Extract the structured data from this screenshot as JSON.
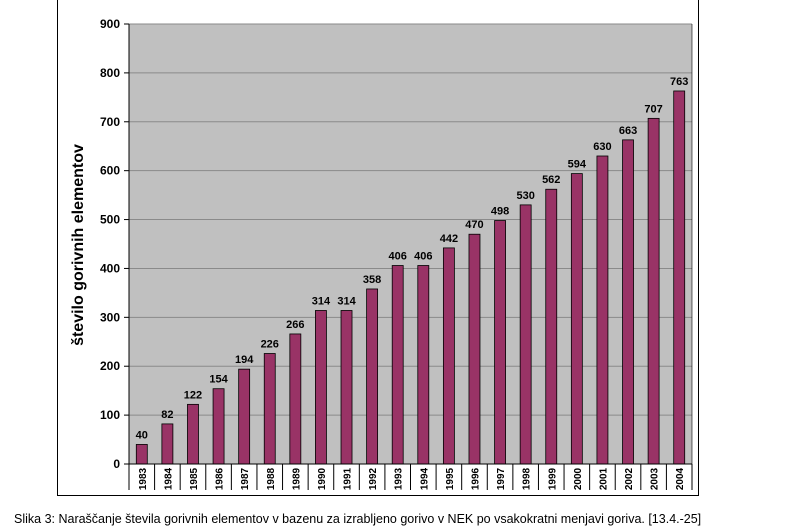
{
  "chart_data": {
    "type": "bar",
    "categories": [
      "1983",
      "1984",
      "1985",
      "1986",
      "1987",
      "1988",
      "1989",
      "1990",
      "1991",
      "1992",
      "1993",
      "1994",
      "1995",
      "1996",
      "1997",
      "1998",
      "1999",
      "2000",
      "2001",
      "2002",
      "2003",
      "2004"
    ],
    "values": [
      40,
      82,
      122,
      154,
      194,
      226,
      266,
      314,
      314,
      358,
      406,
      406,
      442,
      470,
      498,
      530,
      562,
      594,
      630,
      663,
      707,
      763
    ],
    "data_labels": [
      "40",
      "82",
      "122",
      "154",
      "194",
      "226",
      "266",
      "314",
      "314",
      "358",
      "406",
      "406",
      "442",
      "470",
      "498",
      "530",
      "562",
      "594",
      "630",
      "663",
      "707",
      "763"
    ],
    "ylabel": "število gorivnih elementov",
    "xlabel": "",
    "ylim": [
      0,
      900
    ],
    "yticks": [
      "0",
      "100",
      "200",
      "300",
      "400",
      "500",
      "600",
      "700",
      "800",
      "900"
    ],
    "grid": true,
    "colors": {
      "bar": "#993366",
      "plot_bg": "#c0c0c0",
      "grid": "#000000"
    }
  },
  "caption": "Slika 3: Naraščanje števila gorivnih elementov v bazenu za izrabljeno gorivo v NEK po vsakokratni menjavi goriva. [13.4.-25]"
}
